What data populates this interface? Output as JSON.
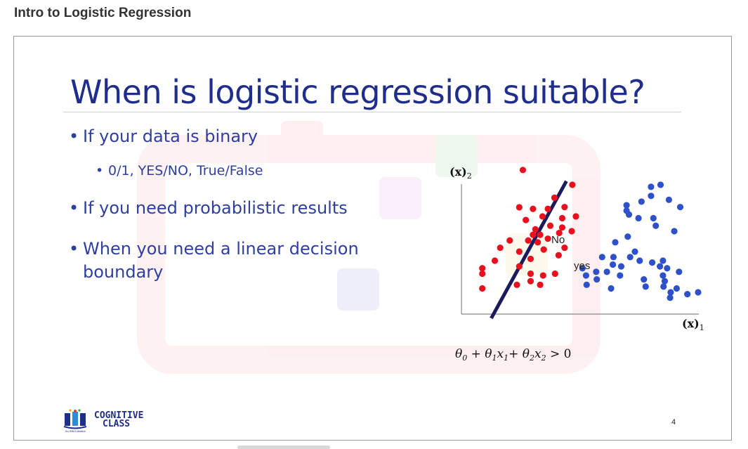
{
  "page": {
    "title": "Intro to Logistic Regression"
  },
  "slide": {
    "heading": "When is logistic regression suitable?",
    "bullets": [
      {
        "text": "If your data is binary",
        "sub": [
          "0/1, YES/NO,  True/False"
        ]
      },
      {
        "text": "If you need probabilistic results"
      },
      {
        "text_line1": "When you need a linear decision",
        "text_line2": "boundary"
      }
    ],
    "slide_number": "4",
    "logo": {
      "line1": "COGNITIVE",
      "line2": "CLASS",
      "tagline": "An IBM Initiative"
    }
  },
  "chart_data": {
    "type": "scatter",
    "xlabel": "(x)1",
    "ylabel": "(x)2",
    "region_labels": {
      "no": "No",
      "yes": "yes"
    },
    "equation": "θ0 + θ1x1+ θ2x2 > 0",
    "colors": {
      "no": "#e8101e",
      "yes": "#2e50c8",
      "boundary": "#1a1a5c",
      "axis": "#888888"
    },
    "series": [
      {
        "class": "no",
        "points": [
          [
            1.03,
            7.86
          ],
          [
            1.56,
            6.79
          ],
          [
            1.86,
            7.29
          ],
          [
            0.97,
            6.42
          ],
          [
            1.2,
            6.36
          ],
          [
            1.45,
            6.36
          ],
          [
            1.36,
            6.07
          ],
          [
            1.69,
            6.0
          ],
          [
            1.73,
            6.43
          ],
          [
            1.92,
            6.07
          ],
          [
            1.49,
            5.71
          ],
          [
            1.69,
            5.64
          ],
          [
            1.24,
            5.57
          ],
          [
            1.64,
            5.43
          ],
          [
            1.85,
            5.5
          ],
          [
            1.32,
            5.36
          ],
          [
            1.2,
            5.36
          ],
          [
            1.28,
            5.07
          ],
          [
            1.45,
            5.21
          ],
          [
            0.81,
            5.14
          ],
          [
            1.12,
            5.14
          ],
          [
            1.73,
            4.86
          ],
          [
            1.38,
            4.79
          ],
          [
            1.63,
            4.57
          ],
          [
            1.16,
            4.43
          ],
          [
            0.56,
            4.36
          ],
          [
            0.97,
            4.14
          ],
          [
            0.35,
            4.07
          ],
          [
            0.35,
            3.86
          ],
          [
            1.57,
            3.86
          ],
          [
            1.16,
            3.86
          ],
          [
            1.37,
            3.79
          ],
          [
            1.16,
            3.57
          ],
          [
            0.35,
            3.29
          ],
          [
            0.93,
            3.43
          ],
          [
            1.32,
            3.43
          ],
          [
            0.97,
            4.71
          ],
          [
            1.08,
            5.93
          ],
          [
            0.65,
            4.86
          ]
        ]
      },
      {
        "class": "yes",
        "points": [
          [
            3.34,
            7.29
          ],
          [
            3.18,
            7.21
          ],
          [
            3.18,
            6.86
          ],
          [
            3.02,
            6.64
          ],
          [
            2.77,
            6.5
          ],
          [
            2.77,
            6.29
          ],
          [
            3.22,
            6.0
          ],
          [
            2.97,
            6.0
          ],
          [
            2.81,
            6.14
          ],
          [
            3.48,
            6.71
          ],
          [
            3.67,
            6.43
          ],
          [
            3.26,
            5.71
          ],
          [
            3.57,
            5.5
          ],
          [
            2.79,
            5.29
          ],
          [
            2.58,
            5.07
          ],
          [
            2.55,
            4.5
          ],
          [
            2.83,
            4.5
          ],
          [
            2.99,
            4.36
          ],
          [
            3.2,
            4.29
          ],
          [
            3.38,
            4.36
          ],
          [
            2.91,
            4.71
          ],
          [
            2.36,
            4.5
          ],
          [
            2.54,
            4.21
          ],
          [
            2.03,
            4.07
          ],
          [
            2.26,
            3.93
          ],
          [
            2.44,
            3.93
          ],
          [
            2.09,
            3.79
          ],
          [
            2.27,
            3.64
          ],
          [
            2.66,
            3.79
          ],
          [
            3.06,
            3.64
          ],
          [
            3.45,
            4.07
          ],
          [
            3.38,
            3.79
          ],
          [
            3.41,
            3.57
          ],
          [
            3.09,
            3.36
          ],
          [
            3.61,
            3.29
          ],
          [
            3.65,
            3.93
          ],
          [
            2.1,
            3.43
          ],
          [
            2.51,
            3.29
          ],
          [
            3.51,
            3.14
          ],
          [
            3.5,
            2.93
          ],
          [
            3.39,
            3.36
          ],
          [
            3.97,
            3.14
          ],
          [
            3.79,
            3.07
          ],
          [
            2.68,
            4.14
          ],
          [
            3.33,
            4.14
          ]
        ]
      }
    ],
    "boundary": [
      [
        1.76,
        7.43
      ],
      [
        0.5,
        2.14
      ]
    ],
    "xlim": [
      0,
      4.1
    ],
    "ylim": [
      2.3,
      8.4
    ]
  }
}
